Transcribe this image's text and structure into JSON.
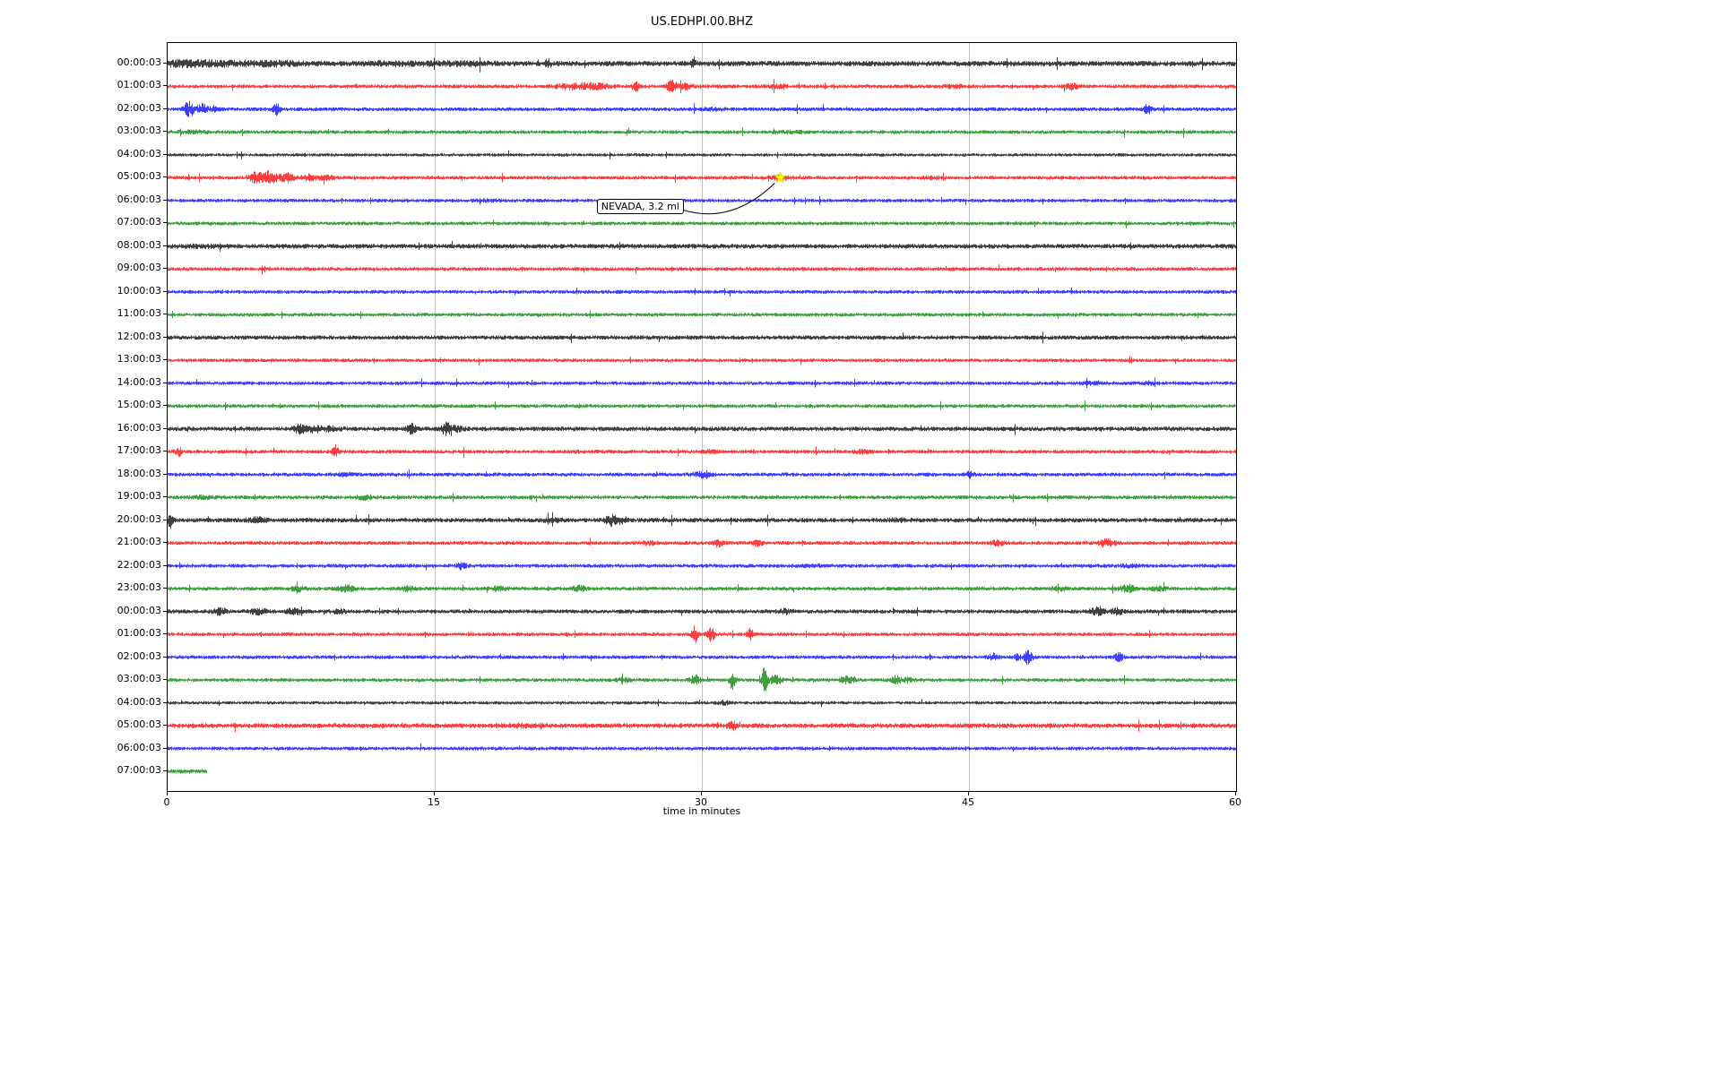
{
  "title": "US.EDHPI.00.BHZ",
  "chart_data": {
    "type": "line",
    "variant": "seismogram_dayplot",
    "title": "US.EDHPI.00.BHZ",
    "xlabel": "time in minutes",
    "xlim": [
      0,
      60
    ],
    "x_ticks": [
      {
        "value": 0,
        "label": "0"
      },
      {
        "value": 15,
        "label": "15"
      },
      {
        "value": 30,
        "label": "30"
      },
      {
        "value": 45,
        "label": "45"
      },
      {
        "value": 60,
        "label": "60"
      }
    ],
    "grid_minutes": [
      15,
      30,
      45
    ],
    "grid_on": true,
    "grid_color": "#b0b0b0",
    "background": "#ffffff",
    "color_cycle": [
      "#000000",
      "#ff0000",
      "#0000ff",
      "#008000"
    ],
    "annotation": {
      "text": "NEVADA, 3.2 ml",
      "marker": "star-icon",
      "marker_color": "#ffff00",
      "marker_row_index": 5,
      "marker_minute": 34.4,
      "label_minute": 24.1,
      "label_row_index": 6
    },
    "rows": [
      {
        "label": "00:00:03",
        "color": "#000000",
        "amp": 2.7,
        "events": [
          {
            "m": 0.8,
            "a": 1.6,
            "w": 1.2
          },
          {
            "m": 3.2,
            "a": 1.2,
            "w": 1.5
          },
          {
            "m": 6.2,
            "a": 1.2,
            "w": 1.2
          },
          {
            "m": 13,
            "a": 0.8,
            "w": 2
          },
          {
            "m": 17,
            "a": 1,
            "w": 1
          },
          {
            "m": 21.3,
            "a": 5,
            "w": 0.12
          },
          {
            "m": 29.5,
            "a": 5,
            "w": 0.1
          }
        ]
      },
      {
        "label": "01:00:03",
        "color": "#ff0000",
        "amp": 2.0,
        "events": [
          {
            "m": 22.8,
            "a": 2.2,
            "w": 0.7
          },
          {
            "m": 24.2,
            "a": 1.8,
            "w": 0.5
          },
          {
            "m": 26.3,
            "a": 4,
            "w": 0.15
          },
          {
            "m": 28.3,
            "a": 6,
            "w": 0.2
          },
          {
            "m": 29.1,
            "a": 2.5,
            "w": 0.25
          },
          {
            "m": 34,
            "a": 1.2,
            "w": 0.5
          },
          {
            "m": 44,
            "a": 0.8,
            "w": 0.5
          },
          {
            "m": 50.7,
            "a": 3,
            "w": 0.25
          }
        ]
      },
      {
        "label": "02:00:03",
        "color": "#0000ff",
        "amp": 2.0,
        "events": [
          {
            "m": 1.2,
            "a": 7,
            "w": 0.2
          },
          {
            "m": 1.9,
            "a": 5,
            "w": 0.18
          },
          {
            "m": 2.6,
            "a": 2.5,
            "w": 0.2
          },
          {
            "m": 6.1,
            "a": 5.5,
            "w": 0.15
          },
          {
            "m": 30.5,
            "a": 0.8,
            "w": 0.5
          },
          {
            "m": 55,
            "a": 4.5,
            "w": 0.15
          }
        ]
      },
      {
        "label": "03:00:03",
        "color": "#008000",
        "amp": 1.9,
        "events": [
          {
            "m": 1.5,
            "a": 0.8,
            "w": 0.8
          },
          {
            "m": 35,
            "a": 0.7,
            "w": 0.6
          }
        ]
      },
      {
        "label": "04:00:03",
        "color": "#000000",
        "amp": 1.7,
        "events": []
      },
      {
        "label": "05:00:03",
        "color": "#ff0000",
        "amp": 2.0,
        "events": [
          {
            "m": 4.9,
            "a": 4.5,
            "w": 0.25
          },
          {
            "m": 5.7,
            "a": 6,
            "w": 0.3
          },
          {
            "m": 6.7,
            "a": 4,
            "w": 0.25
          },
          {
            "m": 7.9,
            "a": 2.8,
            "w": 0.25
          },
          {
            "m": 8.9,
            "a": 1.8,
            "w": 0.3
          },
          {
            "m": 34.4,
            "a": 1.8,
            "w": 0.35
          },
          {
            "m": 43,
            "a": 0.9,
            "w": 0.4
          }
        ]
      },
      {
        "label": "06:00:03",
        "color": "#0000ff",
        "amp": 1.9,
        "events": [
          {
            "m": 18,
            "a": 0.7,
            "w": 0.6
          }
        ]
      },
      {
        "label": "07:00:03",
        "color": "#008000",
        "amp": 1.9,
        "events": []
      },
      {
        "label": "08:00:03",
        "color": "#000000",
        "amp": 2.4,
        "events": [
          {
            "m": 2,
            "a": 0.7,
            "w": 1
          }
        ]
      },
      {
        "label": "09:00:03",
        "color": "#ff0000",
        "amp": 2.0,
        "events": []
      },
      {
        "label": "10:00:03",
        "color": "#0000ff",
        "amp": 1.9,
        "events": []
      },
      {
        "label": "11:00:03",
        "color": "#008000",
        "amp": 1.9,
        "events": []
      },
      {
        "label": "12:00:03",
        "color": "#000000",
        "amp": 2.2,
        "events": []
      },
      {
        "label": "13:00:03",
        "color": "#ff0000",
        "amp": 1.9,
        "events": []
      },
      {
        "label": "14:00:03",
        "color": "#0000ff",
        "amp": 1.9,
        "events": [
          {
            "m": 52,
            "a": 1.4,
            "w": 0.35
          },
          {
            "m": 55.2,
            "a": 1.1,
            "w": 0.3
          }
        ]
      },
      {
        "label": "15:00:03",
        "color": "#008000",
        "amp": 1.9,
        "events": []
      },
      {
        "label": "16:00:03",
        "color": "#000000",
        "amp": 2.3,
        "events": [
          {
            "m": 7.4,
            "a": 3.8,
            "w": 0.25
          },
          {
            "m": 8.3,
            "a": 2.8,
            "w": 0.3
          },
          {
            "m": 9.2,
            "a": 1.8,
            "w": 0.3
          },
          {
            "m": 13.7,
            "a": 4.2,
            "w": 0.18
          },
          {
            "m": 15.6,
            "a": 4.2,
            "w": 0.22
          },
          {
            "m": 16.1,
            "a": 2,
            "w": 0.35
          }
        ]
      },
      {
        "label": "17:00:03",
        "color": "#ff0000",
        "amp": 2.0,
        "events": [
          {
            "m": 0.6,
            "a": 4,
            "w": 0.12
          },
          {
            "m": 9.4,
            "a": 5.5,
            "w": 0.12
          },
          {
            "m": 30.5,
            "a": 1,
            "w": 0.3
          },
          {
            "m": 39,
            "a": 1.3,
            "w": 0.3
          }
        ]
      },
      {
        "label": "18:00:03",
        "color": "#0000ff",
        "amp": 2.0,
        "events": [
          {
            "m": 10,
            "a": 0.9,
            "w": 0.4
          },
          {
            "m": 30,
            "a": 2.2,
            "w": 0.35
          },
          {
            "m": 45,
            "a": 2.4,
            "w": 0.2
          }
        ]
      },
      {
        "label": "19:00:03",
        "color": "#008000",
        "amp": 2.0,
        "events": [
          {
            "m": 2,
            "a": 0.9,
            "w": 0.5
          },
          {
            "m": 11,
            "a": 1.8,
            "w": 0.25
          }
        ]
      },
      {
        "label": "20:00:03",
        "color": "#000000",
        "amp": 2.3,
        "events": [
          {
            "m": 0.15,
            "a": 9,
            "w": 0.1
          },
          {
            "m": 5,
            "a": 2.2,
            "w": 0.35
          },
          {
            "m": 21.6,
            "a": 1.3,
            "w": 0.4
          },
          {
            "m": 24.9,
            "a": 4.5,
            "w": 0.25
          },
          {
            "m": 25.5,
            "a": 3.5,
            "w": 0.18
          },
          {
            "m": 41,
            "a": 0.9,
            "w": 0.5
          }
        ]
      },
      {
        "label": "21:00:03",
        "color": "#ff0000",
        "amp": 2.0,
        "events": [
          {
            "m": 27,
            "a": 0.9,
            "w": 0.4
          },
          {
            "m": 30.9,
            "a": 2.8,
            "w": 0.22
          },
          {
            "m": 33.1,
            "a": 2.3,
            "w": 0.22
          },
          {
            "m": 46.6,
            "a": 2.3,
            "w": 0.25
          },
          {
            "m": 52.7,
            "a": 3.2,
            "w": 0.3
          }
        ]
      },
      {
        "label": "22:00:03",
        "color": "#0000ff",
        "amp": 2.0,
        "events": [
          {
            "m": 16.5,
            "a": 3.2,
            "w": 0.18
          },
          {
            "m": 36,
            "a": 0.9,
            "w": 0.4
          },
          {
            "m": 54,
            "a": 0.9,
            "w": 0.4
          }
        ]
      },
      {
        "label": "23:00:03",
        "color": "#008000",
        "amp": 2.0,
        "events": [
          {
            "m": 7.3,
            "a": 2.3,
            "w": 0.28
          },
          {
            "m": 10,
            "a": 2.8,
            "w": 0.3
          },
          {
            "m": 13.4,
            "a": 2.3,
            "w": 0.28
          },
          {
            "m": 18.6,
            "a": 1.4,
            "w": 0.35
          },
          {
            "m": 23.1,
            "a": 2.3,
            "w": 0.28
          },
          {
            "m": 50,
            "a": 1.4,
            "w": 0.35
          },
          {
            "m": 53.9,
            "a": 2.8,
            "w": 0.35
          },
          {
            "m": 55.6,
            "a": 1.8,
            "w": 0.3
          }
        ]
      },
      {
        "label": "00:00:03",
        "color": "#000000",
        "amp": 2.1,
        "events": [
          {
            "m": 2.9,
            "a": 2.8,
            "w": 0.28
          },
          {
            "m": 5.1,
            "a": 2.3,
            "w": 0.35
          },
          {
            "m": 7.1,
            "a": 2.3,
            "w": 0.35
          },
          {
            "m": 9.6,
            "a": 1.4,
            "w": 0.3
          },
          {
            "m": 34.7,
            "a": 1.8,
            "w": 0.3
          },
          {
            "m": 52.2,
            "a": 3.2,
            "w": 0.28
          },
          {
            "m": 53.3,
            "a": 2.8,
            "w": 0.22
          }
        ]
      },
      {
        "label": "01:00:03",
        "color": "#ff0000",
        "amp": 1.9,
        "events": [
          {
            "m": 29.6,
            "a": 8,
            "w": 0.12
          },
          {
            "m": 30.5,
            "a": 6.5,
            "w": 0.15
          },
          {
            "m": 32.7,
            "a": 5.5,
            "w": 0.12
          }
        ]
      },
      {
        "label": "02:00:03",
        "color": "#0000ff",
        "amp": 1.9,
        "events": [
          {
            "m": 46.4,
            "a": 3.2,
            "w": 0.2
          },
          {
            "m": 47.7,
            "a": 2.8,
            "w": 0.12
          },
          {
            "m": 48.3,
            "a": 7,
            "w": 0.15
          },
          {
            "m": 53.4,
            "a": 4.5,
            "w": 0.15
          }
        ]
      },
      {
        "label": "03:00:03",
        "color": "#008000",
        "amp": 1.9,
        "events": [
          {
            "m": 25.6,
            "a": 1.8,
            "w": 0.3
          },
          {
            "m": 29.6,
            "a": 4.5,
            "w": 0.18
          },
          {
            "m": 31.7,
            "a": 10,
            "w": 0.12
          },
          {
            "m": 33.5,
            "a": 13,
            "w": 0.1
          },
          {
            "m": 34.1,
            "a": 3.5,
            "w": 0.3
          },
          {
            "m": 38.1,
            "a": 2.8,
            "w": 0.35
          },
          {
            "m": 40.9,
            "a": 3.5,
            "w": 0.2
          },
          {
            "m": 41.5,
            "a": 2.3,
            "w": 0.18
          }
        ]
      },
      {
        "label": "04:00:03",
        "color": "#000000",
        "amp": 1.7,
        "events": [
          {
            "m": 31.2,
            "a": 1.4,
            "w": 0.3
          }
        ]
      },
      {
        "label": "05:00:03",
        "color": "#ff0000",
        "amp": 2.5,
        "events": [
          {
            "m": 20,
            "a": 0.9,
            "w": 0.6
          },
          {
            "m": 31.7,
            "a": 3.5,
            "w": 0.18
          }
        ]
      },
      {
        "label": "06:00:03",
        "color": "#0000ff",
        "amp": 1.9,
        "events": []
      },
      {
        "label": "07:00:03",
        "color": "#008000",
        "amp": 2.3,
        "extent_min": 2.2,
        "events": []
      }
    ]
  }
}
